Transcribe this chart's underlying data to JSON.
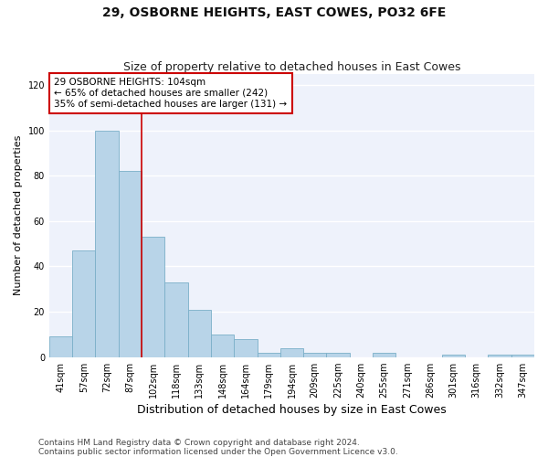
{
  "title": "29, OSBORNE HEIGHTS, EAST COWES, PO32 6FE",
  "subtitle": "Size of property relative to detached houses in East Cowes",
  "xlabel": "Distribution of detached houses by size in East Cowes",
  "ylabel": "Number of detached properties",
  "categories": [
    "41sqm",
    "57sqm",
    "72sqm",
    "87sqm",
    "102sqm",
    "118sqm",
    "133sqm",
    "148sqm",
    "164sqm",
    "179sqm",
    "194sqm",
    "209sqm",
    "225sqm",
    "240sqm",
    "255sqm",
    "271sqm",
    "286sqm",
    "301sqm",
    "316sqm",
    "332sqm",
    "347sqm"
  ],
  "values": [
    9,
    47,
    100,
    82,
    53,
    33,
    21,
    10,
    8,
    2,
    4,
    2,
    2,
    0,
    2,
    0,
    0,
    1,
    0,
    1,
    1
  ],
  "bar_color": "#b8d4e8",
  "bar_edge_color": "#7aafc8",
  "vline_color": "#cc0000",
  "annotation_box_edge_color": "#cc0000",
  "annotation_line1": "29 OSBORNE HEIGHTS: 104sqm",
  "annotation_line2": "← 65% of detached houses are smaller (242)",
  "annotation_line3": "35% of semi-detached houses are larger (131) →",
  "ylim": [
    0,
    125
  ],
  "yticks": [
    0,
    20,
    40,
    60,
    80,
    100,
    120
  ],
  "footer1": "Contains HM Land Registry data © Crown copyright and database right 2024.",
  "footer2": "Contains public sector information licensed under the Open Government Licence v3.0.",
  "background_color": "#ffffff",
  "plot_background": "#eef2fb",
  "grid_color": "#ffffff",
  "title_fontsize": 10,
  "subtitle_fontsize": 9,
  "ylabel_fontsize": 8,
  "xlabel_fontsize": 9,
  "tick_fontsize": 7,
  "annotation_fontsize": 7.5,
  "footer_fontsize": 6.5
}
